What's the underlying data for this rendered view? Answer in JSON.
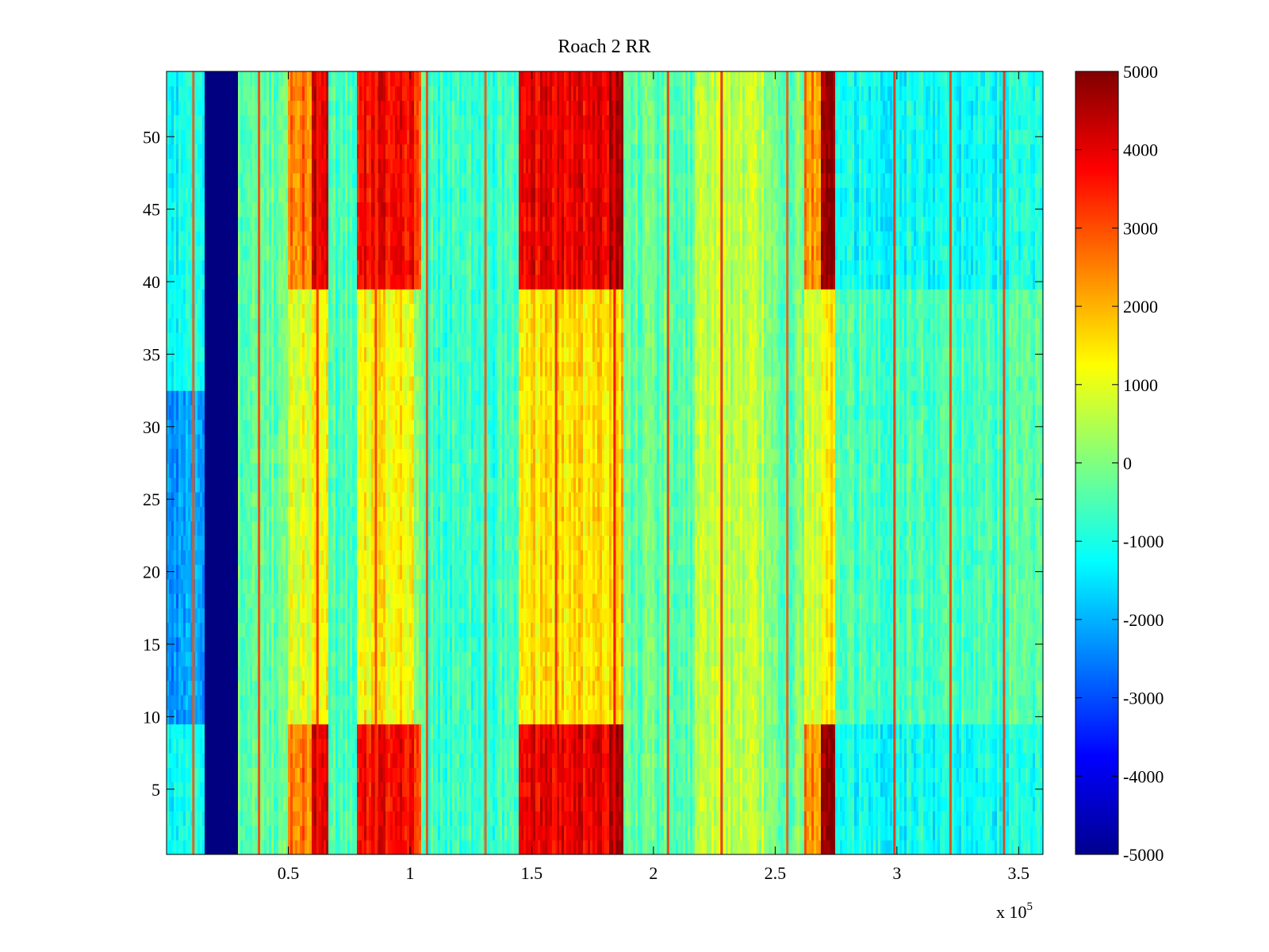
{
  "chart_data": {
    "type": "heatmap",
    "title": "Roach 2 RR",
    "xlabel": "",
    "ylabel": "",
    "x_multiplier_label": "x 10",
    "x_multiplier_exponent": "5",
    "xlim": [
      0,
      3.6
    ],
    "ylim": [
      0.5,
      54.5
    ],
    "x_ticks": [
      0.5,
      1,
      1.5,
      2,
      2.5,
      3,
      3.5
    ],
    "x_tick_labels": [
      "0.5",
      "1",
      "1.5",
      "2",
      "2.5",
      "3",
      "3.5"
    ],
    "y_ticks": [
      5,
      10,
      15,
      20,
      25,
      30,
      35,
      40,
      45,
      50
    ],
    "y_tick_labels": [
      "5",
      "10",
      "15",
      "20",
      "25",
      "30",
      "35",
      "40",
      "45",
      "50"
    ],
    "colorbar": {
      "colormap": "jet",
      "min": -5000,
      "max": 5000,
      "ticks": [
        5000,
        4000,
        3000,
        2000,
        1000,
        0,
        -1000,
        -2000,
        -3000,
        -4000,
        -5000
      ],
      "tick_labels": [
        "5000",
        "4000",
        "3000",
        "2000",
        "1000",
        "0",
        "-1000",
        "-2000",
        "-3000",
        "-4000",
        "-5000"
      ]
    },
    "rows": 54,
    "bands": [
      {
        "x": [
          0.0,
          0.16
        ],
        "value": -1200,
        "low_rows_value": -2300
      },
      {
        "x": [
          0.16,
          0.29
        ],
        "value": -5000
      },
      {
        "x": [
          0.29,
          0.5
        ],
        "value": -300
      },
      {
        "x": [
          0.5,
          0.6
        ],
        "value": 1000,
        "edge_rows_value": 2600
      },
      {
        "x": [
          0.6,
          0.66
        ],
        "value": 1200,
        "edge_rows_value": 4000
      },
      {
        "x": [
          0.66,
          0.78
        ],
        "value": -600
      },
      {
        "x": [
          0.78,
          1.02
        ],
        "value": 1300,
        "edge_rows_value": 3800
      },
      {
        "x": [
          1.02,
          1.05
        ],
        "value": 0,
        "edge_rows_value": 3000
      },
      {
        "x": [
          1.05,
          1.45
        ],
        "value": -700
      },
      {
        "x": [
          1.45,
          1.82
        ],
        "value": 1500,
        "edge_rows_value": 3900
      },
      {
        "x": [
          1.82,
          1.88
        ],
        "value": 1800,
        "edge_rows_value": 4800
      },
      {
        "x": [
          1.88,
          2.17
        ],
        "value": -300
      },
      {
        "x": [
          2.17,
          2.45
        ],
        "value": 600
      },
      {
        "x": [
          2.45,
          2.62
        ],
        "value": -200
      },
      {
        "x": [
          2.62,
          2.69
        ],
        "value": 900,
        "edge_rows_value": 2400
      },
      {
        "x": [
          2.69,
          2.75
        ],
        "value": 1500,
        "edge_rows_value": 4900
      },
      {
        "x": [
          2.75,
          3.6
        ],
        "value": -500,
        "edge_rows_value": -1100
      }
    ],
    "edge_rows": {
      "bottom": [
        1,
        9
      ],
      "top": [
        40,
        54
      ]
    },
    "stripes": [
      {
        "x": 0.11,
        "value": 3000
      },
      {
        "x": 0.38,
        "value": 3200
      },
      {
        "x": 0.62,
        "value": 3500
      },
      {
        "x": 0.86,
        "value": 3300
      },
      {
        "x": 1.07,
        "value": 3200
      },
      {
        "x": 1.31,
        "value": 3000
      },
      {
        "x": 1.6,
        "value": 3600
      },
      {
        "x": 1.84,
        "value": 3800
      },
      {
        "x": 2.06,
        "value": 3300
      },
      {
        "x": 2.28,
        "value": 3500
      },
      {
        "x": 2.55,
        "value": 3000
      },
      {
        "x": 2.99,
        "value": 3400
      },
      {
        "x": 3.22,
        "value": 3200
      },
      {
        "x": 3.44,
        "value": 3300
      }
    ]
  }
}
